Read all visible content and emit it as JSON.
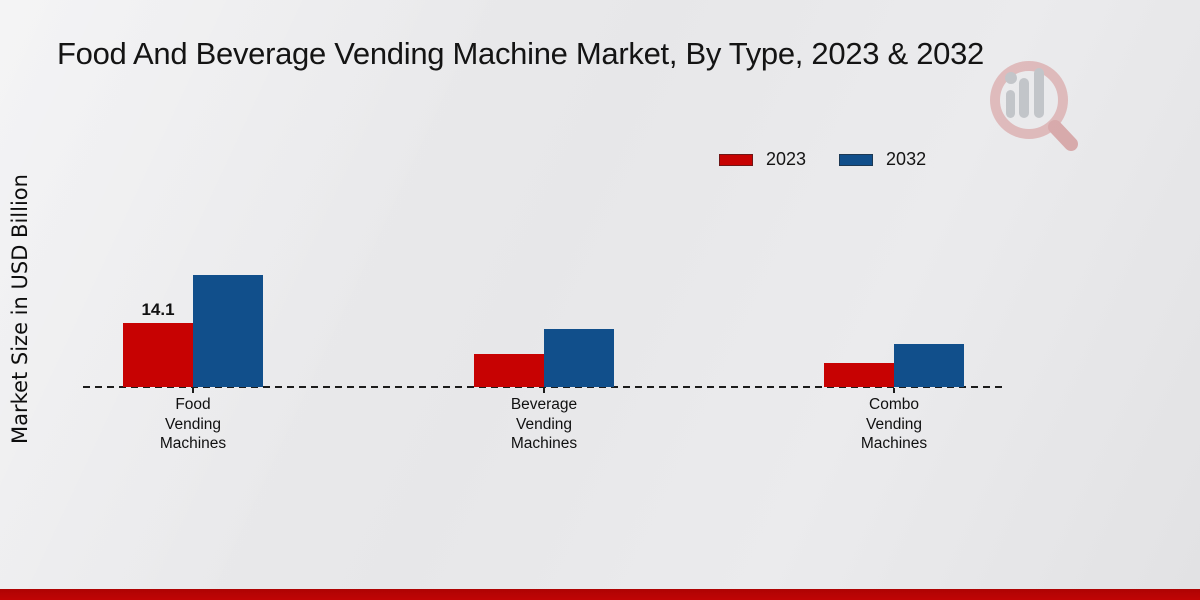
{
  "chart_data": {
    "type": "bar",
    "title": "Food And Beverage Vending Machine Market, By Type, 2023 & 2032",
    "ylabel": "Market Size in USD Billion",
    "xlabel": "",
    "categories": [
      "Food\nVending\nMachines",
      "Beverage\nVending\nMachines",
      "Combo\nVending\nMachines"
    ],
    "series": [
      {
        "name": "2023",
        "color": "#c70202",
        "values": [
          14.1,
          7.3,
          5.3
        ]
      },
      {
        "name": "2032",
        "color": "#114f8b",
        "values": [
          24.7,
          12.8,
          9.5
        ]
      }
    ],
    "data_labels": [
      {
        "series": "2023",
        "category_index": 0,
        "text": "14.1"
      }
    ],
    "ylim": [
      0,
      26
    ],
    "grid": false,
    "legend_position": "top-right",
    "axis_style": "dashed-baseline-only"
  },
  "branding": {
    "watermark_icon": "magnifier-bar-chart-logo",
    "footer_accent_color": "#b90404"
  }
}
